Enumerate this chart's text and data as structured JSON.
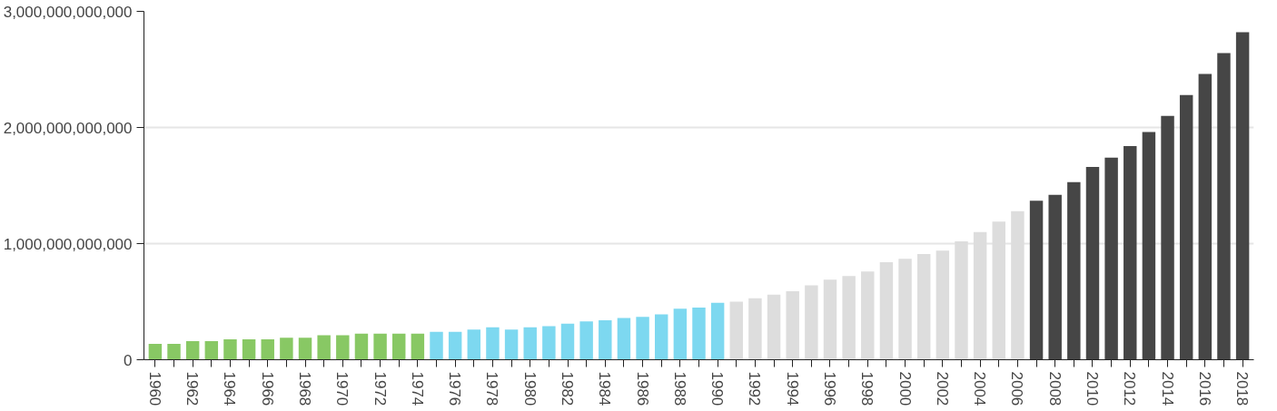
{
  "chart_data": {
    "type": "bar",
    "categories": [
      "1960",
      null,
      "1962",
      null,
      "1964",
      null,
      "1966",
      null,
      "1968",
      null,
      "1970",
      null,
      "1972",
      null,
      "1974",
      null,
      "1976",
      null,
      "1978",
      null,
      "1980",
      null,
      "1982",
      null,
      "1984",
      null,
      "1986",
      null,
      "1988",
      null,
      "1990",
      null,
      "1992",
      null,
      "1994",
      null,
      "1996",
      null,
      "1998",
      null,
      "2000",
      null,
      "2002",
      null,
      "2004",
      null,
      "2006",
      null,
      "2008",
      null,
      "2010",
      null,
      "2012",
      null,
      "2014",
      null,
      "2016",
      null,
      "2018"
    ],
    "values": [
      136000000000.0,
      136000000000.0,
      160000000000.0,
      160000000000.0,
      175000000000.0,
      175000000000.0,
      175000000000.0,
      190000000000.0,
      190000000000.0,
      210000000000.0,
      210000000000.0,
      225000000000.0,
      225000000000.0,
      225000000000.0,
      225000000000.0,
      240000000000.0,
      240000000000.0,
      260000000000.0,
      280000000000.0,
      260000000000.0,
      280000000000.0,
      290000000000.0,
      310000000000.0,
      330000000000.0,
      340000000000.0,
      360000000000.0,
      370000000000.0,
      390000000000.0,
      440000000000.0,
      450000000000.0,
      490000000000.0,
      500000000000.0,
      530000000000.0,
      560000000000.0,
      590000000000.0,
      640000000000.0,
      690000000000.0,
      720000000000.0,
      760000000000.0,
      840000000000.0,
      870000000000.0,
      910000000000.0,
      940000000000.0,
      1020000000000.0,
      1100000000000.0,
      1190000000000.0,
      1280000000000.0,
      1370000000000.0,
      1420000000000.0,
      1530000000000.0,
      1660000000000.0,
      1740000000000.0,
      1840000000000.0,
      1960000000000.0,
      2100000000000.0,
      2280000000000.0,
      2460000000000.0,
      2640000000000.0,
      2820000000000.0
    ],
    "colors": [
      "#88c864",
      "#88c864",
      "#88c864",
      "#88c864",
      "#88c864",
      "#88c864",
      "#88c864",
      "#88c864",
      "#88c864",
      "#88c864",
      "#88c864",
      "#88c864",
      "#88c864",
      "#88c864",
      "#88c864",
      "#7dd8f0",
      "#7dd8f0",
      "#7dd8f0",
      "#7dd8f0",
      "#7dd8f0",
      "#7dd8f0",
      "#7dd8f0",
      "#7dd8f0",
      "#7dd8f0",
      "#7dd8f0",
      "#7dd8f0",
      "#7dd8f0",
      "#7dd8f0",
      "#7dd8f0",
      "#7dd8f0",
      "#7dd8f0",
      "#dddddd",
      "#dddddd",
      "#dddddd",
      "#dddddd",
      "#dddddd",
      "#dddddd",
      "#dddddd",
      "#dddddd",
      "#dddddd",
      "#dddddd",
      "#dddddd",
      "#dddddd",
      "#dddddd",
      "#dddddd",
      "#dddddd",
      "#dddddd",
      "#464646",
      "#464646",
      "#464646",
      "#464646",
      "#464646",
      "#464646",
      "#464646",
      "#464646",
      "#464646",
      "#464646",
      "#464646",
      "#464646"
    ],
    "ylim": [
      0,
      3000000000000
    ],
    "yticks": [
      {
        "value": 0,
        "label": "0"
      },
      {
        "value": 1000000000000,
        "label": "1,000,000,000,000"
      },
      {
        "value": 2000000000000,
        "label": "2,000,000,000,000"
      },
      {
        "value": 3000000000000,
        "label": "3,000,000,000,000"
      }
    ],
    "grid": "y"
  }
}
